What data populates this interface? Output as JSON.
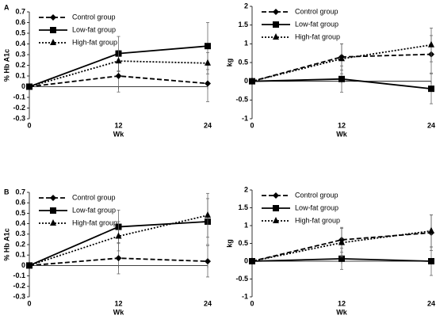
{
  "panel_labels": [
    "A",
    "B"
  ],
  "chart_data": [
    {
      "type": "line",
      "y_label": "% Hb A1c",
      "x_label": "Wk",
      "x": [
        0,
        12,
        24
      ],
      "xlim": [
        0,
        24
      ],
      "xticks": [
        0,
        12,
        24
      ],
      "ylim": [
        -0.3,
        0.7
      ],
      "yticks": [
        -0.3,
        -0.2,
        -0.1,
        0,
        0.1,
        0.2,
        0.3,
        0.4,
        0.5,
        0.6,
        0.7
      ],
      "legend": "upper left",
      "series": [
        {
          "name": "Control group",
          "color": "#000000",
          "line_style": "dashed",
          "marker": "diamond",
          "values": [
            0,
            0.1,
            0.03
          ],
          "errors": [
            null,
            0.15,
            0.17
          ]
        },
        {
          "name": "Low-fat group",
          "color": "#000000",
          "line_style": "solid",
          "marker": "square",
          "values": [
            0,
            0.31,
            0.38
          ],
          "errors": [
            null,
            0.16,
            0.22
          ]
        },
        {
          "name": "High-fat group",
          "color": "#000000",
          "line_style": "dotted",
          "marker": "triangle",
          "values": [
            0,
            0.24,
            0.22
          ],
          "errors": [
            null,
            0.1,
            0.1
          ]
        }
      ]
    },
    {
      "type": "line",
      "y_label": "kg",
      "x_label": "Wk",
      "x": [
        0,
        12,
        24
      ],
      "xlim": [
        0,
        24
      ],
      "xticks": [
        0,
        12,
        24
      ],
      "ylim": [
        -1,
        2
      ],
      "yticks": [
        -1,
        -0.5,
        0,
        0.5,
        1,
        1.5,
        2
      ],
      "legend": "upper left",
      "series": [
        {
          "name": "Control group",
          "color": "#000000",
          "line_style": "dashed",
          "marker": "diamond",
          "values": [
            0,
            0.65,
            0.72
          ],
          "errors": [
            null,
            0.35,
            0.5
          ]
        },
        {
          "name": "Low-fat group",
          "color": "#000000",
          "line_style": "solid",
          "marker": "square",
          "values": [
            0,
            0.06,
            -0.2
          ],
          "errors": [
            null,
            0.35,
            0.4
          ]
        },
        {
          "name": "High-fat group",
          "color": "#000000",
          "line_style": "dotted",
          "marker": "triangle",
          "values": [
            0,
            0.6,
            0.97
          ],
          "errors": [
            null,
            0.4,
            0.45
          ]
        }
      ]
    },
    {
      "type": "line",
      "y_label": "% Hb A1c",
      "x_label": "Wk",
      "x": [
        0,
        12,
        24
      ],
      "xlim": [
        0,
        24
      ],
      "xticks": [
        0,
        12,
        24
      ],
      "ylim": [
        -0.3,
        0.7
      ],
      "yticks": [
        -0.3,
        -0.2,
        -0.1,
        0,
        0.1,
        0.2,
        0.3,
        0.4,
        0.5,
        0.6,
        0.7
      ],
      "legend": "upper left",
      "series": [
        {
          "name": "Control group",
          "color": "#000000",
          "line_style": "dashed",
          "marker": "diamond",
          "values": [
            0,
            0.07,
            0.04
          ],
          "errors": [
            null,
            0.15,
            0.15
          ]
        },
        {
          "name": "Low-fat group",
          "color": "#000000",
          "line_style": "solid",
          "marker": "square",
          "values": [
            0,
            0.37,
            0.42
          ],
          "errors": [
            null,
            0.16,
            0.22
          ]
        },
        {
          "name": "High-fat group",
          "color": "#000000",
          "line_style": "dotted",
          "marker": "triangle",
          "values": [
            0,
            0.28,
            0.48
          ],
          "errors": [
            null,
            0.14,
            0.21
          ]
        }
      ]
    },
    {
      "type": "line",
      "y_label": "kg",
      "x_label": "Wk",
      "x": [
        0,
        12,
        24
      ],
      "xlim": [
        0,
        24
      ],
      "xticks": [
        0,
        12,
        24
      ],
      "ylim": [
        -1,
        2
      ],
      "yticks": [
        -1,
        -0.5,
        0,
        0.5,
        1,
        1.5,
        2
      ],
      "legend": "upper left",
      "series": [
        {
          "name": "Control group",
          "color": "#000000",
          "line_style": "dashed",
          "marker": "diamond",
          "values": [
            0,
            0.6,
            0.8
          ],
          "errors": [
            null,
            0.35,
            0.5
          ]
        },
        {
          "name": "Low-fat group",
          "color": "#000000",
          "line_style": "solid",
          "marker": "square",
          "values": [
            0,
            0.07,
            0
          ],
          "errors": [
            null,
            0.3,
            0.4
          ]
        },
        {
          "name": "High-fat group",
          "color": "#000000",
          "line_style": "dotted",
          "marker": "triangle",
          "values": [
            0,
            0.52,
            0.85
          ],
          "errors": [
            null,
            0.4,
            0.45
          ]
        }
      ]
    }
  ]
}
